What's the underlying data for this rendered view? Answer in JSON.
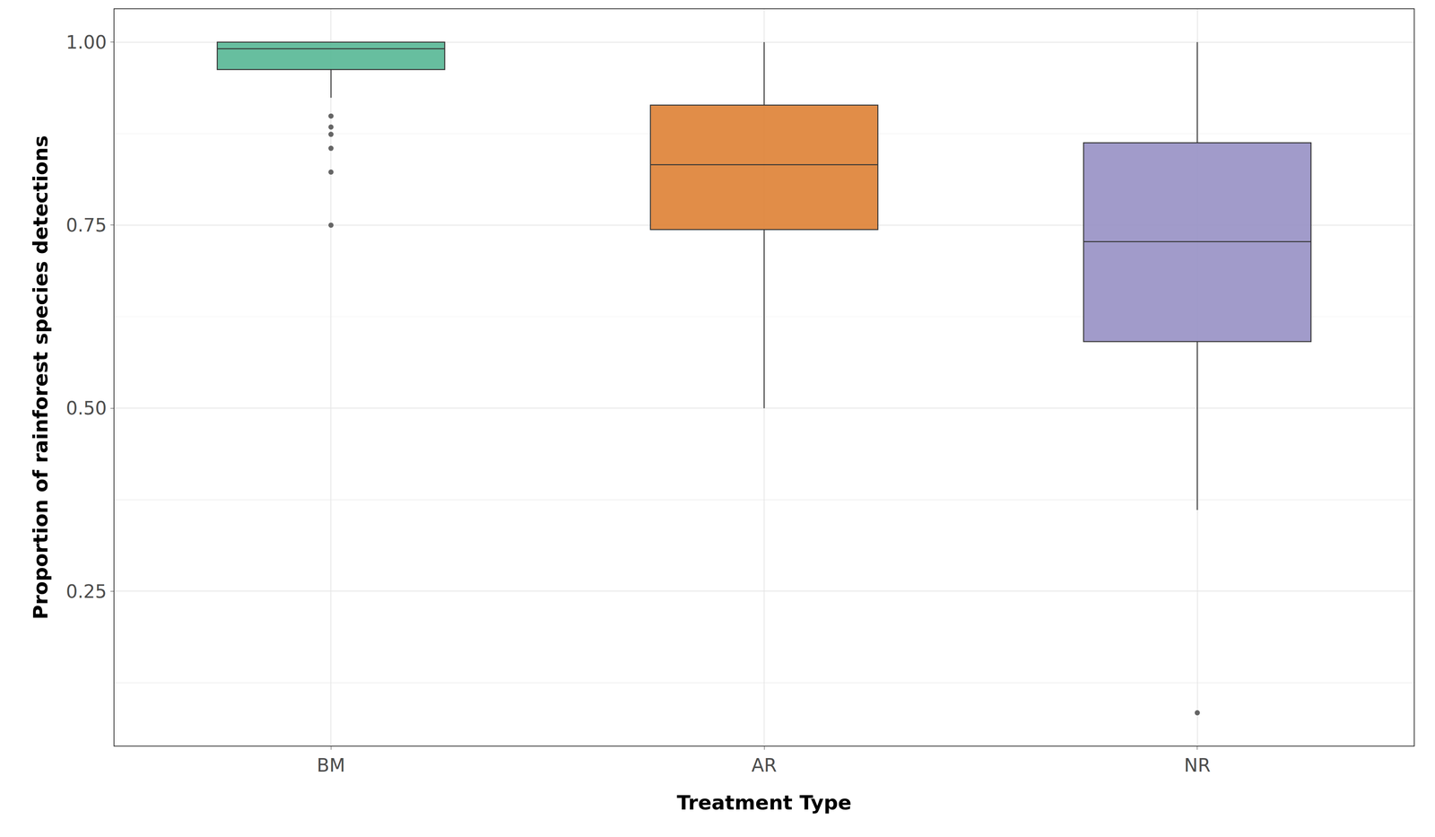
{
  "chart_data": {
    "type": "box",
    "x_label": "Treatment Type",
    "y_label": "Proportion of rainforest species detections",
    "categories": [
      "BM",
      "AR",
      "NR"
    ],
    "q1": [
      0.9625,
      0.744,
      0.591
    ],
    "median": [
      0.991,
      0.8325,
      0.7275
    ],
    "q3": [
      1.0,
      0.914,
      0.8625
    ],
    "lowerfence": [
      0.924,
      0.5,
      0.361
    ],
    "upperfence": [
      1.0,
      1.0,
      1.0
    ],
    "outliers": [
      [
        0.899,
        0.884,
        0.874,
        0.855,
        0.8225,
        0.75
      ],
      [],
      [
        0.084
      ]
    ],
    "colors": [
      "#5fbb9a",
      "#e0873f",
      "#9c96c8"
    ],
    "ylim": [
      0.039,
      1.045
    ],
    "yticks": [
      {
        "value": 0.25,
        "label": "0.25"
      },
      {
        "value": 0.5,
        "label": "0.50"
      },
      {
        "value": 0.75,
        "label": "0.75"
      },
      {
        "value": 1.0,
        "label": "1.00"
      }
    ],
    "grid": true
  }
}
